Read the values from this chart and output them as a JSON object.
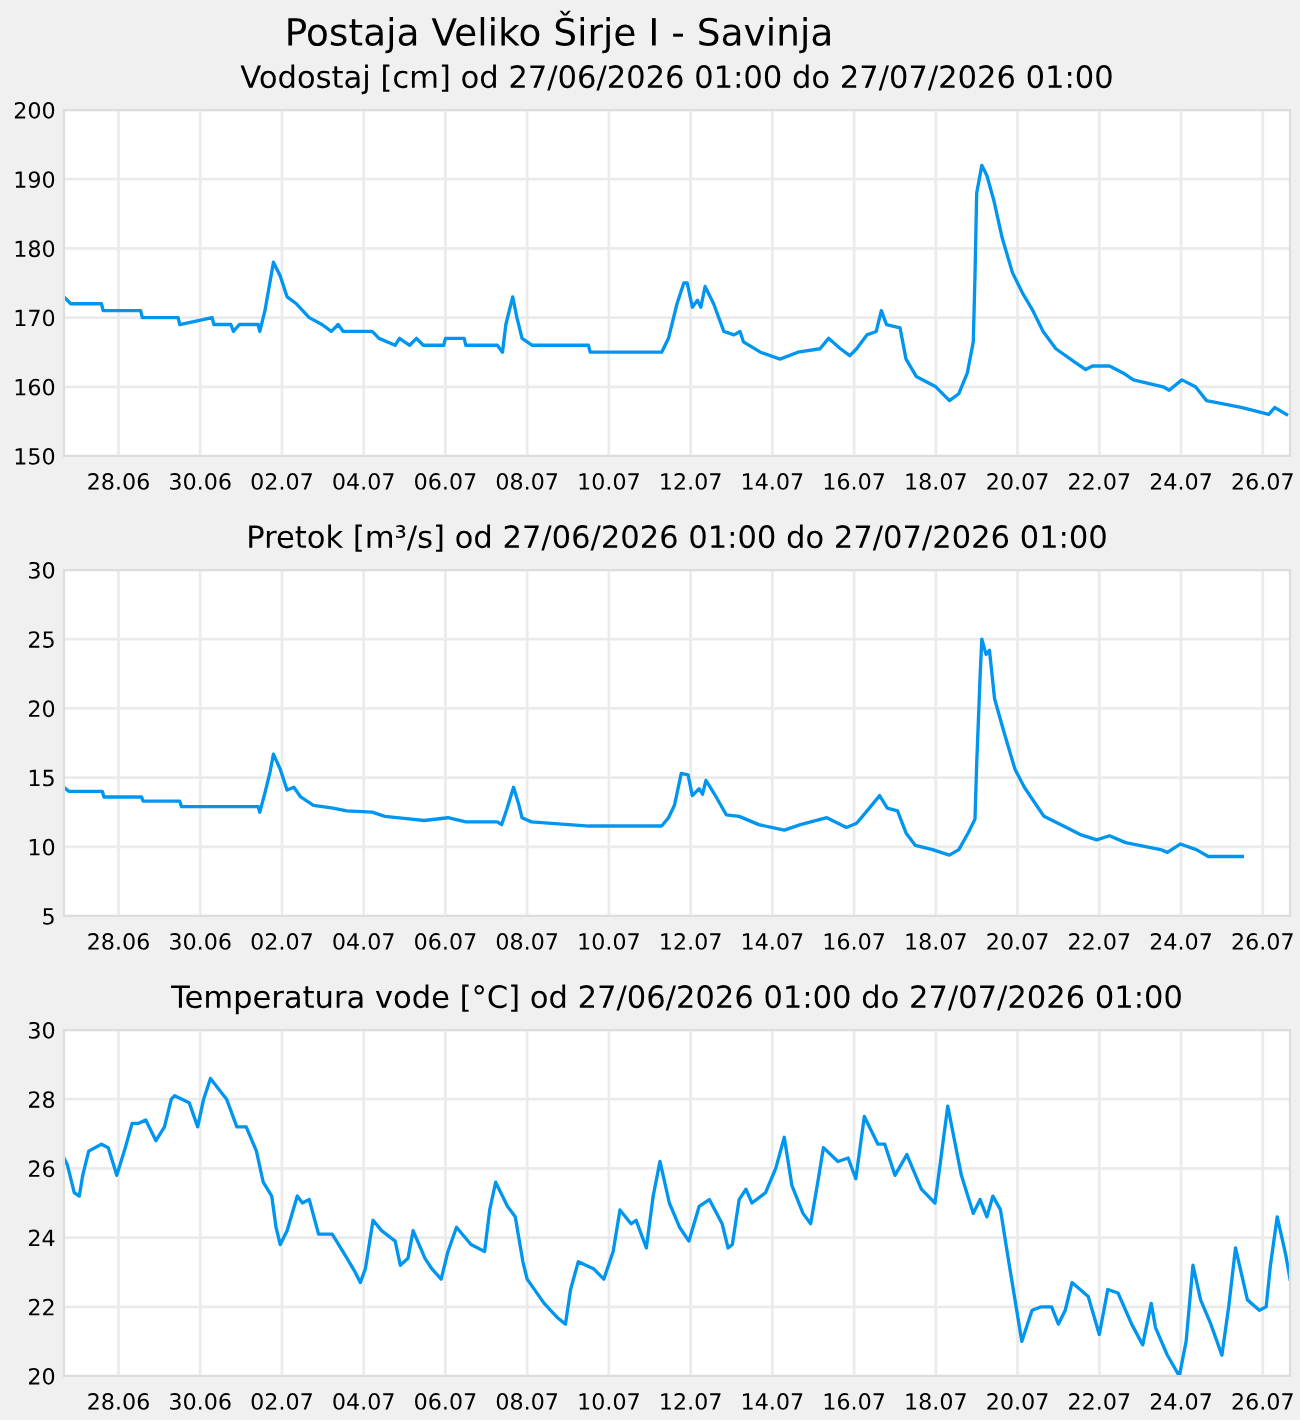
{
  "chart_data": [
    {
      "type": "line",
      "title": "Postaja Veliko Širje I - Savinja",
      "subtitle": "Vodostaj [cm] od 27/06/2026 01:00 do 27/07/2026 01:00",
      "xlim": [
        "2026-06-27T01:00",
        "2026-07-27T01:00"
      ],
      "xticks": [
        {
          "value": "2026-06-28T09:00",
          "label": "28.06"
        },
        {
          "value": "2026-06-30T09:00",
          "label": "30.06"
        },
        {
          "value": "2026-07-02T09:00",
          "label": "02.07"
        },
        {
          "value": "2026-07-04T09:00",
          "label": "04.07"
        },
        {
          "value": "2026-07-06T09:00",
          "label": "06.07"
        },
        {
          "value": "2026-07-08T09:00",
          "label": "08.07"
        },
        {
          "value": "2026-07-10T09:00",
          "label": "10.07"
        },
        {
          "value": "2026-07-12T09:00",
          "label": "12.07"
        },
        {
          "value": "2026-07-14T09:00",
          "label": "14.07"
        },
        {
          "value": "2026-07-16T09:00",
          "label": "16.07"
        },
        {
          "value": "2026-07-18T09:00",
          "label": "18.07"
        },
        {
          "value": "2026-07-20T09:00",
          "label": "20.07"
        },
        {
          "value": "2026-07-22T09:00",
          "label": "22.07"
        },
        {
          "value": "2026-07-24T09:00",
          "label": "24.07"
        },
        {
          "value": "2026-07-26T09:00",
          "label": "26.07"
        }
      ],
      "ylim": [
        150,
        200
      ],
      "yticks": [
        150,
        160,
        170,
        180,
        190,
        200
      ],
      "grid": true,
      "line_style": "solid",
      "marker": "none",
      "series": [
        {
          "color": "#0096f0",
          "x": [
            "2026-06-27T01:00",
            "2026-06-27T05:00",
            "2026-06-27T23:00",
            "2026-06-28T00:00",
            "2026-06-28T22:00",
            "2026-06-28T23:00",
            "2026-06-29T20:00",
            "2026-06-29T21:00",
            "2026-06-30T16:00",
            "2026-06-30T17:00",
            "2026-07-01T03:00",
            "2026-07-01T04:30",
            "2026-07-01T08:00",
            "2026-07-01T19:00",
            "2026-07-01T20:00",
            "2026-07-01T23:00",
            "2026-07-02T04:00",
            "2026-07-02T08:00",
            "2026-07-02T12:00",
            "2026-07-02T17:30",
            "2026-07-03T01:00",
            "2026-07-03T08:30",
            "2026-07-03T14:00",
            "2026-07-03T18:00",
            "2026-07-03T21:00",
            "2026-07-04T14:00",
            "2026-07-04T18:00",
            "2026-07-05T03:30",
            "2026-07-05T06:00",
            "2026-07-05T12:00",
            "2026-07-05T16:00",
            "2026-07-05T20:00",
            "2026-07-06T08:00",
            "2026-07-06T09:00",
            "2026-07-06T20:00",
            "2026-07-06T21:00",
            "2026-07-07T15:30",
            "2026-07-07T18:30",
            "2026-07-07T20:30",
            "2026-07-08T00:30",
            "2026-07-08T03:00",
            "2026-07-08T06:00",
            "2026-07-08T12:00",
            "2026-07-09T21:00",
            "2026-07-09T22:00",
            "2026-07-11T16:00",
            "2026-07-11T20:00",
            "2026-07-12T01:00",
            "2026-07-12T05:00",
            "2026-07-12T07:00",
            "2026-07-12T10:00",
            "2026-07-12T13:00",
            "2026-07-12T15:00",
            "2026-07-12T17:30",
            "2026-07-12T22:30",
            "2026-07-13T04:30",
            "2026-07-13T10:30",
            "2026-07-13T14:00",
            "2026-07-13T16:00",
            "2026-07-14T02:00",
            "2026-07-14T13:30",
            "2026-07-15T00:00",
            "2026-07-15T13:00",
            "2026-07-15T18:00",
            "2026-07-16T01:00",
            "2026-07-16T06:30",
            "2026-07-16T10:30",
            "2026-07-16T16:30",
            "2026-07-16T22:00",
            "2026-07-17T01:00",
            "2026-07-17T04:00",
            "2026-07-17T12:00",
            "2026-07-17T15:30",
            "2026-07-17T21:30",
            "2026-07-18T09:00",
            "2026-07-18T17:00",
            "2026-07-18T22:30",
            "2026-07-19T03:30",
            "2026-07-19T07:00",
            "2026-07-19T08:00",
            "2026-07-19T09:00",
            "2026-07-19T12:00",
            "2026-07-19T15:00",
            "2026-07-19T19:00",
            "2026-07-20T00:00",
            "2026-07-20T06:00",
            "2026-07-20T12:00",
            "2026-07-20T18:00",
            "2026-07-21T00:00",
            "2026-07-21T07:30",
            "2026-07-21T19:00",
            "2026-07-22T01:00",
            "2026-07-22T05:00",
            "2026-07-22T15:00",
            "2026-07-22T23:00",
            "2026-07-23T05:00",
            "2026-07-23T22:30",
            "2026-07-24T02:00",
            "2026-07-24T09:30",
            "2026-07-24T17:30",
            "2026-07-25T00:00",
            "2026-07-25T21:00",
            "2026-07-26T12:30",
            "2026-07-26T16:00",
            "2026-07-26T23:00"
          ],
          "values": [
            173,
            172,
            172,
            171,
            171,
            170,
            170,
            169,
            170,
            169,
            169,
            168,
            169,
            169,
            168,
            171,
            178,
            176,
            173,
            172,
            170,
            169,
            168,
            169,
            168,
            168,
            167,
            166,
            167,
            166,
            167,
            166,
            166,
            167,
            167,
            166,
            166,
            165,
            169,
            173,
            170,
            167,
            166,
            166,
            165,
            165,
            167,
            172,
            175,
            175,
            171.5,
            172.5,
            171.5,
            174.5,
            172,
            168,
            167.5,
            168,
            166.5,
            165,
            164,
            165,
            165.5,
            167,
            165.5,
            164.5,
            165.5,
            167.5,
            168,
            171,
            169,
            168.5,
            164,
            161.5,
            160,
            158,
            159,
            162,
            166.5,
            176,
            188,
            192,
            190.5,
            187,
            181.5,
            176.5,
            173.5,
            171,
            168,
            165.5,
            163.5,
            162.5,
            163,
            163,
            162,
            161,
            160,
            159.5,
            161,
            160,
            158,
            157,
            156,
            157,
            156
          ]
        }
      ]
    },
    {
      "type": "line",
      "title": "Pretok [m³/s] od 27/06/2026 01:00 do 27/07/2026 01:00",
      "xlim": [
        "2026-06-27T01:00",
        "2026-07-27T01:00"
      ],
      "xticks": [
        {
          "value": "2026-06-28T09:00",
          "label": "28.06"
        },
        {
          "value": "2026-06-30T09:00",
          "label": "30.06"
        },
        {
          "value": "2026-07-02T09:00",
          "label": "02.07"
        },
        {
          "value": "2026-07-04T09:00",
          "label": "04.07"
        },
        {
          "value": "2026-07-06T09:00",
          "label": "06.07"
        },
        {
          "value": "2026-07-08T09:00",
          "label": "08.07"
        },
        {
          "value": "2026-07-10T09:00",
          "label": "10.07"
        },
        {
          "value": "2026-07-12T09:00",
          "label": "12.07"
        },
        {
          "value": "2026-07-14T09:00",
          "label": "14.07"
        },
        {
          "value": "2026-07-16T09:00",
          "label": "16.07"
        },
        {
          "value": "2026-07-18T09:00",
          "label": "18.07"
        },
        {
          "value": "2026-07-20T09:00",
          "label": "20.07"
        },
        {
          "value": "2026-07-22T09:00",
          "label": "22.07"
        },
        {
          "value": "2026-07-24T09:00",
          "label": "24.07"
        },
        {
          "value": "2026-07-26T09:00",
          "label": "26.07"
        }
      ],
      "ylim": [
        5,
        30
      ],
      "yticks": [
        5,
        10,
        15,
        20,
        25,
        30
      ],
      "grid": true,
      "line_style": "solid",
      "marker": "none",
      "series": [
        {
          "color": "#0096f0",
          "x": [
            "2026-06-27T01:00",
            "2026-06-27T04:00",
            "2026-06-27T23:30",
            "2026-06-28T00:30",
            "2026-06-28T22:30",
            "2026-06-28T23:30",
            "2026-06-29T21:00",
            "2026-06-29T22:00",
            "2026-07-01T19:00",
            "2026-07-01T20:00",
            "2026-07-01T23:00",
            "2026-07-02T02:00",
            "2026-07-02T04:00",
            "2026-07-02T08:00",
            "2026-07-02T12:00",
            "2026-07-02T16:00",
            "2026-07-02T20:00",
            "2026-07-03T03:30",
            "2026-07-03T15:00",
            "2026-07-03T23:00",
            "2026-07-04T14:00",
            "2026-07-04T21:30",
            "2026-07-05T13:00",
            "2026-07-05T20:30",
            "2026-07-06T10:30",
            "2026-07-06T21:00",
            "2026-07-07T15:30",
            "2026-07-07T18:00",
            "2026-07-07T21:00",
            "2026-07-08T01:00",
            "2026-07-08T04:00",
            "2026-07-08T06:00",
            "2026-07-08T11:30",
            "2026-07-09T21:30",
            "2026-07-11T16:00",
            "2026-07-11T20:00",
            "2026-07-11T23:30",
            "2026-07-12T03:30",
            "2026-07-12T07:30",
            "2026-07-12T10:00",
            "2026-07-12T14:00",
            "2026-07-12T16:00",
            "2026-07-12T18:00",
            "2026-07-13T00:00",
            "2026-07-13T06:00",
            "2026-07-13T13:30",
            "2026-07-14T01:00",
            "2026-07-14T16:00",
            "2026-07-15T01:30",
            "2026-07-15T17:00",
            "2026-07-16T04:30",
            "2026-07-16T10:30",
            "2026-07-16T16:00",
            "2026-07-17T00:00",
            "2026-07-17T04:30",
            "2026-07-17T10:30",
            "2026-07-17T15:30",
            "2026-07-17T21:00",
            "2026-07-18T07:00",
            "2026-07-18T17:00",
            "2026-07-18T22:30",
            "2026-07-19T04:00",
            "2026-07-19T08:00",
            "2026-07-19T09:00",
            "2026-07-19T11:00",
            "2026-07-19T12:00",
            "2026-07-19T14:30",
            "2026-07-19T16:30",
            "2026-07-19T19:30",
            "2026-07-20T01:00",
            "2026-07-20T07:30",
            "2026-07-20T13:00",
            "2026-07-20T19:00",
            "2026-07-21T00:30",
            "2026-07-21T12:00",
            "2026-07-21T21:30",
            "2026-07-22T07:30",
            "2026-07-22T15:00",
            "2026-07-23T00:30",
            "2026-07-23T21:00",
            "2026-07-24T01:00",
            "2026-07-24T08:30",
            "2026-07-24T18:00",
            "2026-07-25T01:00",
            "2026-07-25T21:00"
          ],
          "values": [
            14.3,
            14.0,
            14.0,
            13.6,
            13.6,
            13.3,
            13.3,
            12.9,
            12.9,
            12.5,
            13.9,
            15.4,
            16.7,
            15.6,
            14.1,
            14.3,
            13.6,
            13.0,
            12.8,
            12.6,
            12.5,
            12.2,
            12.0,
            11.9,
            12.1,
            11.8,
            11.8,
            11.6,
            12.7,
            14.3,
            13.1,
            12.1,
            11.8,
            11.5,
            11.5,
            12.1,
            13.0,
            15.3,
            15.2,
            13.7,
            14.2,
            13.8,
            14.8,
            13.6,
            12.3,
            12.2,
            11.6,
            11.2,
            11.6,
            12.1,
            11.4,
            11.7,
            12.5,
            13.7,
            12.8,
            12.6,
            11.0,
            10.1,
            9.8,
            9.4,
            9.8,
            11.0,
            12.0,
            16.0,
            22.3,
            25.0,
            23.9,
            24.2,
            20.7,
            18.3,
            15.6,
            14.3,
            13.2,
            12.2,
            11.5,
            10.9,
            10.5,
            10.8,
            10.3,
            9.8,
            9.6,
            10.2,
            9.8,
            9.3,
            9.3
          ]
        }
      ]
    },
    {
      "type": "line",
      "title": "Temperatura vode [°C] od 27/06/2026 01:00 do 27/07/2026 01:00",
      "xlim": [
        "2026-06-27T01:00",
        "2026-07-27T01:00"
      ],
      "xticks": [
        {
          "value": "2026-06-28T09:00",
          "label": "28.06"
        },
        {
          "value": "2026-06-30T09:00",
          "label": "30.06"
        },
        {
          "value": "2026-07-02T09:00",
          "label": "02.07"
        },
        {
          "value": "2026-07-04T09:00",
          "label": "04.07"
        },
        {
          "value": "2026-07-06T09:00",
          "label": "06.07"
        },
        {
          "value": "2026-07-08T09:00",
          "label": "08.07"
        },
        {
          "value": "2026-07-10T09:00",
          "label": "10.07"
        },
        {
          "value": "2026-07-12T09:00",
          "label": "12.07"
        },
        {
          "value": "2026-07-14T09:00",
          "label": "14.07"
        },
        {
          "value": "2026-07-16T09:00",
          "label": "16.07"
        },
        {
          "value": "2026-07-18T09:00",
          "label": "18.07"
        },
        {
          "value": "2026-07-20T09:00",
          "label": "20.07"
        },
        {
          "value": "2026-07-22T09:00",
          "label": "22.07"
        },
        {
          "value": "2026-07-24T09:00",
          "label": "24.07"
        },
        {
          "value": "2026-07-26T09:00",
          "label": "26.07"
        }
      ],
      "ylim": [
        20,
        30
      ],
      "yticks": [
        20,
        22,
        24,
        26,
        28,
        30
      ],
      "grid": true,
      "line_style": "solid",
      "marker": "none",
      "series": [
        {
          "color": "#0096f0",
          "x": [
            "2026-06-27T01:00",
            "2026-06-27T03:00",
            "2026-06-27T07:00",
            "2026-06-27T10:00",
            "2026-06-27T12:00",
            "2026-06-27T15:30",
            "2026-06-27T23:00",
            "2026-06-28T03:00",
            "2026-06-28T08:00",
            "2026-06-28T13:00",
            "2026-06-28T17:00",
            "2026-06-28T20:30",
            "2026-06-29T01:00",
            "2026-06-29T07:00",
            "2026-06-29T12:00",
            "2026-06-29T16:00",
            "2026-06-29T18:00",
            "2026-06-30T02:30",
            "2026-06-30T07:30",
            "2026-06-30T11:00",
            "2026-06-30T15:00",
            "2026-07-01T00:30",
            "2026-07-01T06:30",
            "2026-07-01T12:00",
            "2026-07-01T18:00",
            "2026-07-01T22:00",
            "2026-07-02T03:00",
            "2026-07-02T05:30",
            "2026-07-02T08:00",
            "2026-07-02T12:00",
            "2026-07-02T18:00",
            "2026-07-02T21:00",
            "2026-07-03T01:00",
            "2026-07-03T06:30",
            "2026-07-03T14:30",
            "2026-07-03T22:00",
            "2026-07-04T04:00",
            "2026-07-04T07:00",
            "2026-07-04T10:00",
            "2026-07-04T14:30",
            "2026-07-04T19:30",
            "2026-07-05T03:30",
            "2026-07-05T06:30",
            "2026-07-05T11:00",
            "2026-07-05T14:00",
            "2026-07-05T21:00",
            "2026-07-06T01:00",
            "2026-07-06T06:30",
            "2026-07-06T10:30",
            "2026-07-06T15:30",
            "2026-07-07T00:00",
            "2026-07-07T08:00",
            "2026-07-07T11:00",
            "2026-07-07T14:30",
            "2026-07-07T21:30",
            "2026-07-08T02:00",
            "2026-07-08T06:30",
            "2026-07-08T09:00",
            "2026-07-08T19:00",
            "2026-07-09T02:30",
            "2026-07-09T07:30",
            "2026-07-09T10:30",
            "2026-07-09T15:00",
            "2026-07-10T00:00",
            "2026-07-10T06:00",
            "2026-07-10T11:30",
            "2026-07-10T15:30",
            "2026-07-10T22:00",
            "2026-07-11T01:00",
            "2026-07-11T07:00",
            "2026-07-11T11:00",
            "2026-07-11T15:00",
            "2026-07-11T20:30",
            "2026-07-12T02:30",
            "2026-07-12T08:00",
            "2026-07-12T14:00",
            "2026-07-12T20:00",
            "2026-07-13T03:30",
            "2026-07-13T07:00",
            "2026-07-13T09:30",
            "2026-07-13T13:30",
            "2026-07-13T17:30",
            "2026-07-13T21:00",
            "2026-07-14T05:00",
            "2026-07-14T11:00",
            "2026-07-14T16:00",
            "2026-07-14T20:30",
            "2026-07-15T03:00",
            "2026-07-15T07:30",
            "2026-07-15T12:00",
            "2026-07-15T15:00",
            "2026-07-15T23:30",
            "2026-07-16T05:30",
            "2026-07-16T10:00",
            "2026-07-16T15:00",
            "2026-07-16T23:00",
            "2026-07-17T03:00",
            "2026-07-17T09:00",
            "2026-07-17T16:00",
            "2026-07-18T00:30",
            "2026-07-18T08:30",
            "2026-07-18T12:00",
            "2026-07-18T16:00",
            "2026-07-18T20:00",
            "2026-07-19T00:00",
            "2026-07-19T07:00",
            "2026-07-19T11:00",
            "2026-07-19T15:00",
            "2026-07-19T18:30",
            "2026-07-19T23:00",
            "2026-07-20T03:30",
            "2026-07-20T08:30",
            "2026-07-20T11:30",
            "2026-07-20T17:30",
            "2026-07-20T23:00",
            "2026-07-21T05:00",
            "2026-07-21T09:00",
            "2026-07-21T13:00",
            "2026-07-21T17:00",
            "2026-07-22T02:30",
            "2026-07-22T09:00",
            "2026-07-22T14:00",
            "2026-07-22T20:00",
            "2026-07-23T04:00",
            "2026-07-23T10:30",
            "2026-07-23T15:30",
            "2026-07-23T18:00",
            "2026-07-24T01:00",
            "2026-07-24T08:00",
            "2026-07-24T12:00",
            "2026-07-24T16:00",
            "2026-07-24T20:30",
            "2026-07-25T02:30",
            "2026-07-25T09:00",
            "2026-07-25T13:00",
            "2026-07-25T17:00",
            "2026-07-26T00:00",
            "2026-07-26T07:00",
            "2026-07-26T11:00",
            "2026-07-26T13:30",
            "2026-07-26T17:30",
            "2026-07-26T22:30",
            "2026-07-27T01:00"
          ],
          "values": [
            26.3,
            26.1,
            25.3,
            25.2,
            25.8,
            26.5,
            26.7,
            26.6,
            25.8,
            26.6,
            27.3,
            27.3,
            27.4,
            26.8,
            27.2,
            28.0,
            28.1,
            27.9,
            27.2,
            28.0,
            28.6,
            28.0,
            27.2,
            27.2,
            26.5,
            25.6,
            25.2,
            24.3,
            23.8,
            24.2,
            25.2,
            25.0,
            25.1,
            24.1,
            24.1,
            23.5,
            23.0,
            22.7,
            23.1,
            24.5,
            24.2,
            23.9,
            23.2,
            23.4,
            24.2,
            23.4,
            23.1,
            22.8,
            23.6,
            24.3,
            23.8,
            23.6,
            24.8,
            25.6,
            24.9,
            24.6,
            23.3,
            22.8,
            22.1,
            21.7,
            21.5,
            22.5,
            23.3,
            23.1,
            22.8,
            23.6,
            24.8,
            24.4,
            24.5,
            23.7,
            25.2,
            26.2,
            25.0,
            24.3,
            23.9,
            24.9,
            25.1,
            24.4,
            23.7,
            23.8,
            25.1,
            25.4,
            25.0,
            25.3,
            26.0,
            26.9,
            25.5,
            24.7,
            24.4,
            25.7,
            26.6,
            26.2,
            26.3,
            25.7,
            27.5,
            26.7,
            26.7,
            25.8,
            26.4,
            25.4,
            25.0,
            26.3,
            27.8,
            26.8,
            25.8,
            24.7,
            25.1,
            24.6,
            25.2,
            24.8,
            23.4,
            21.9,
            21.0,
            21.9,
            22.0,
            22.0,
            21.5,
            21.9,
            22.7,
            22.3,
            21.2,
            22.5,
            22.4,
            21.5,
            20.9,
            22.1,
            21.4,
            20.6,
            20.0,
            21.0,
            23.2,
            22.2,
            21.5,
            20.6,
            22.0,
            23.7,
            22.2,
            21.9,
            22.0,
            23.2,
            24.6,
            23.5,
            22.8
          ]
        }
      ]
    }
  ]
}
